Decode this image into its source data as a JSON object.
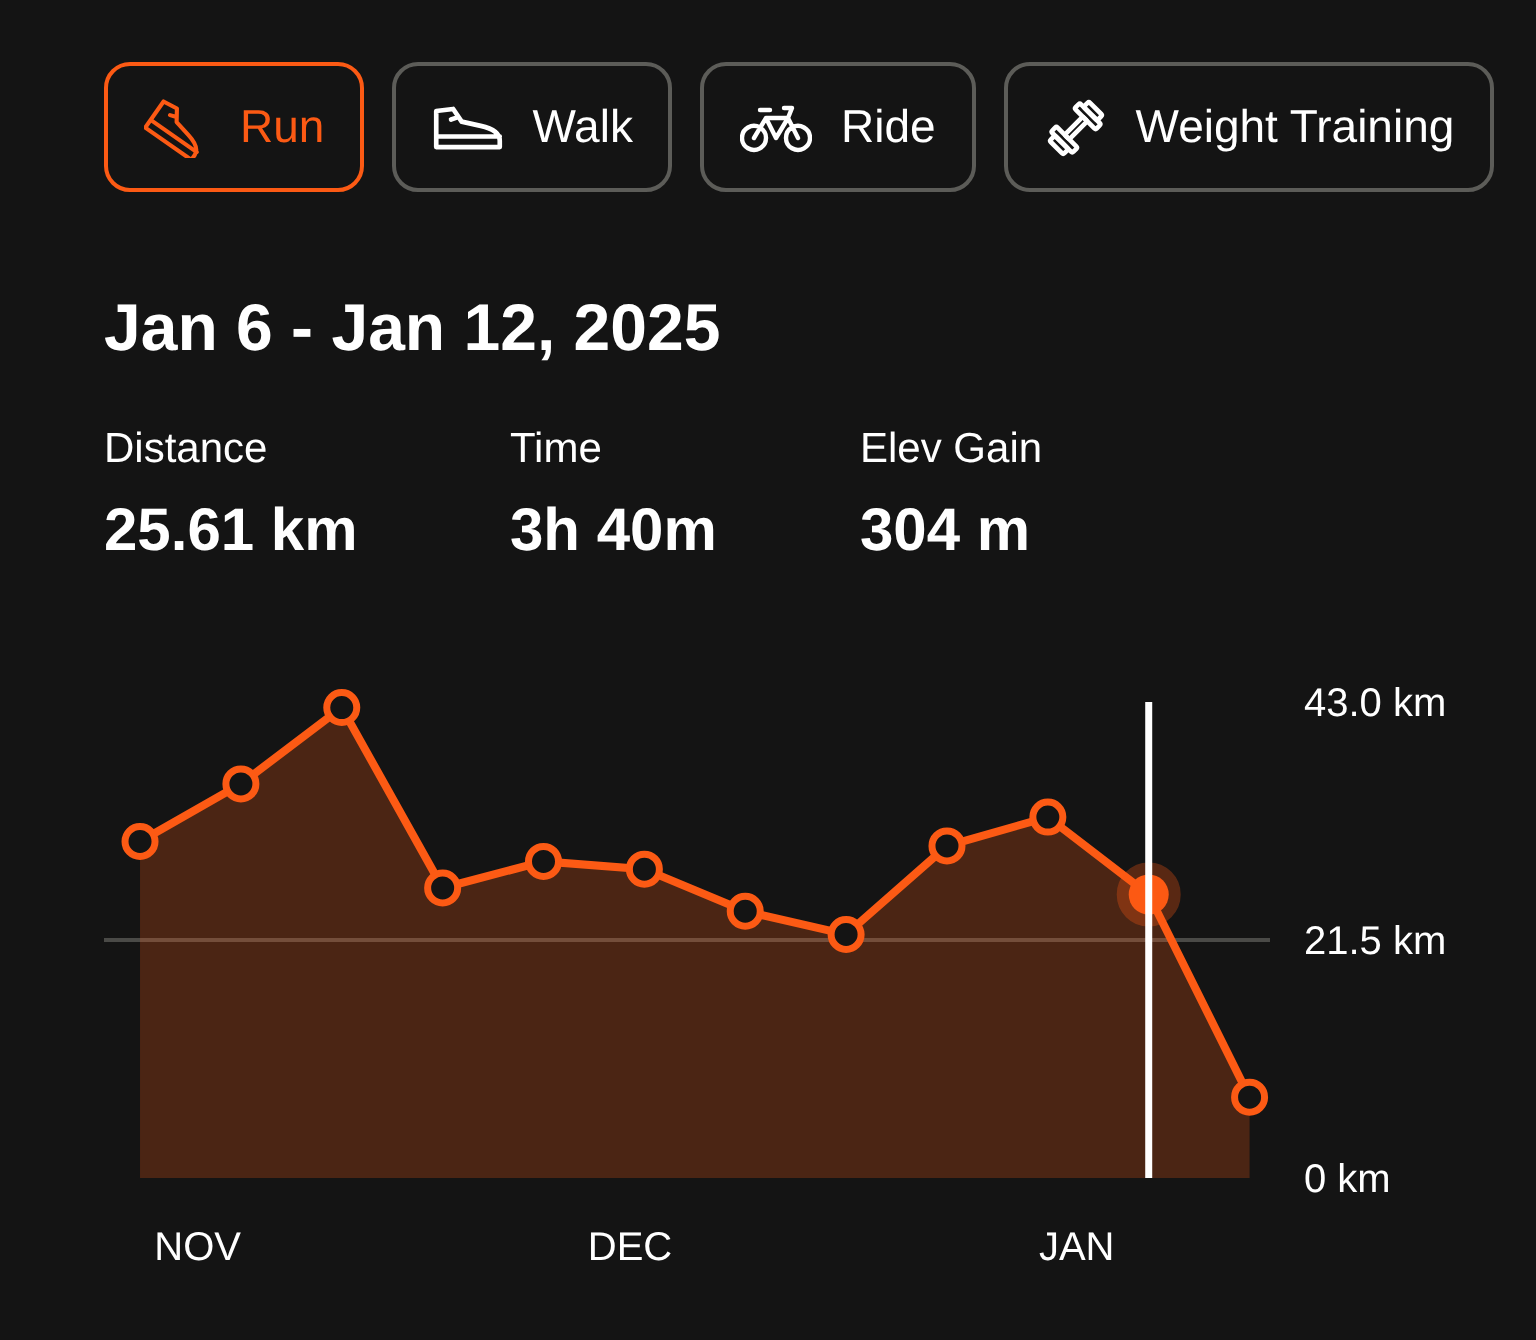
{
  "chart_data": {
    "type": "area",
    "title": "Jan 6 - Jan 12, 2025",
    "annotations": [
      "Run",
      "Walk",
      "Ride",
      "Weight Training",
      "Distance",
      "25.61 km",
      "Time",
      "3h 40m",
      "Elev Gain",
      "304 m"
    ],
    "x": [
      "2024-10-28",
      "2024-11-04",
      "2024-11-11",
      "2024-11-18",
      "2024-11-25",
      "2024-12-02",
      "2024-12-09",
      "2024-12-16",
      "2024-12-23",
      "2024-12-30",
      "2025-01-06",
      "2025-01-13"
    ],
    "series": [
      {
        "color": "#fc5a14",
        "values": [
          30.4,
          35.6,
          42.5,
          26.2,
          28.6,
          27.9,
          24.1,
          22.0,
          30.0,
          32.6,
          25.61,
          7.3
        ]
      },
      {
        "type": "scatter",
        "x": [
          "2025-01-06"
        ],
        "color": "#fc5a14",
        "values": [
          25.61
        ]
      }
    ],
    "xlim": [
      "2024-10-25T12:00",
      "2025-01-14T10:00"
    ],
    "xticks": [
      {
        "value": "2024-11-01",
        "label": "NOV"
      },
      {
        "value": "2024-12-01",
        "label": "DEC"
      },
      {
        "value": "2025-01-01",
        "label": "JAN"
      }
    ],
    "ylim": [
      0,
      43
    ],
    "yticks": [
      {
        "value": 0,
        "label": "0 km"
      },
      {
        "value": 21.5,
        "label": "21.5 km"
      },
      {
        "value": 43,
        "label": "43.0 km"
      }
    ],
    "grid": "y",
    "marker": "circle",
    "ref_lines": [
      {
        "axis": "x",
        "value": "2025-01-06",
        "color": "#ffffff"
      }
    ]
  }
}
